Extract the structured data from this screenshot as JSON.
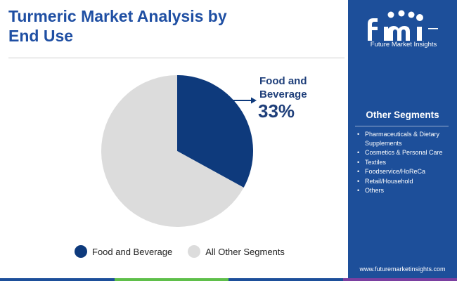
{
  "header": {
    "title": "Turmeric Market Analysis by End Use"
  },
  "chart_data": {
    "type": "pie",
    "title": "Turmeric Market Analysis by End Use",
    "categories": [
      "Food and Beverage",
      "All Other Segments"
    ],
    "values": [
      33,
      67
    ],
    "unit": "%",
    "colors": [
      "#0e3a7c",
      "#dcdcdc"
    ],
    "callout": {
      "label": "Food and Beverage",
      "value": "33%"
    },
    "legend_position": "bottom",
    "legend": [
      "Food and Beverage",
      "All Other Segments"
    ]
  },
  "sidebar": {
    "logo_name": "Future Market Insights",
    "logo_icon": "fmi-logo",
    "segments_title": "Other Segments",
    "segments": [
      "Pharmaceuticals & Dietary Supplements",
      "Cosmetics & Personal Care",
      "Textiles",
      "Foodservice/HoReCa",
      "Retail/Household",
      "Others"
    ],
    "url": "www.futuremarketinsights.com"
  },
  "colors": {
    "sidebar_bg": "#1d4f9a",
    "title": "#1f4fa3",
    "bottom_bar": [
      "#1d4f9a",
      "#5fbf4a",
      "#1d4f9a",
      "#7a3fa0"
    ]
  }
}
